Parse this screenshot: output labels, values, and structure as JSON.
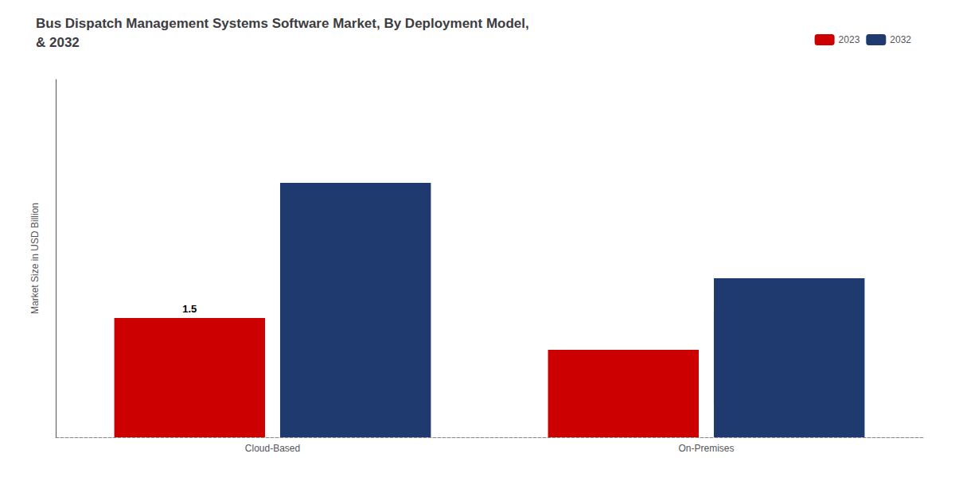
{
  "chart_data": {
    "type": "bar",
    "title": "Bus Dispatch Management Systems Software Market, By Deployment Model,\n& 2032",
    "ylabel": "Market Size in USD Billion",
    "categories": [
      "Cloud-Based",
      "On-Premises"
    ],
    "series": [
      {
        "name": "2023",
        "color": "#cc0000",
        "values": [
          1.5,
          1.1
        ],
        "value_labels": [
          "1.5",
          null
        ]
      },
      {
        "name": "2032",
        "color": "#1e3a6e",
        "values": [
          3.2,
          2.0
        ]
      }
    ],
    "ylim": [
      0,
      4.5
    ],
    "tick_labels": "x",
    "grid": false,
    "legend": "upper right"
  }
}
